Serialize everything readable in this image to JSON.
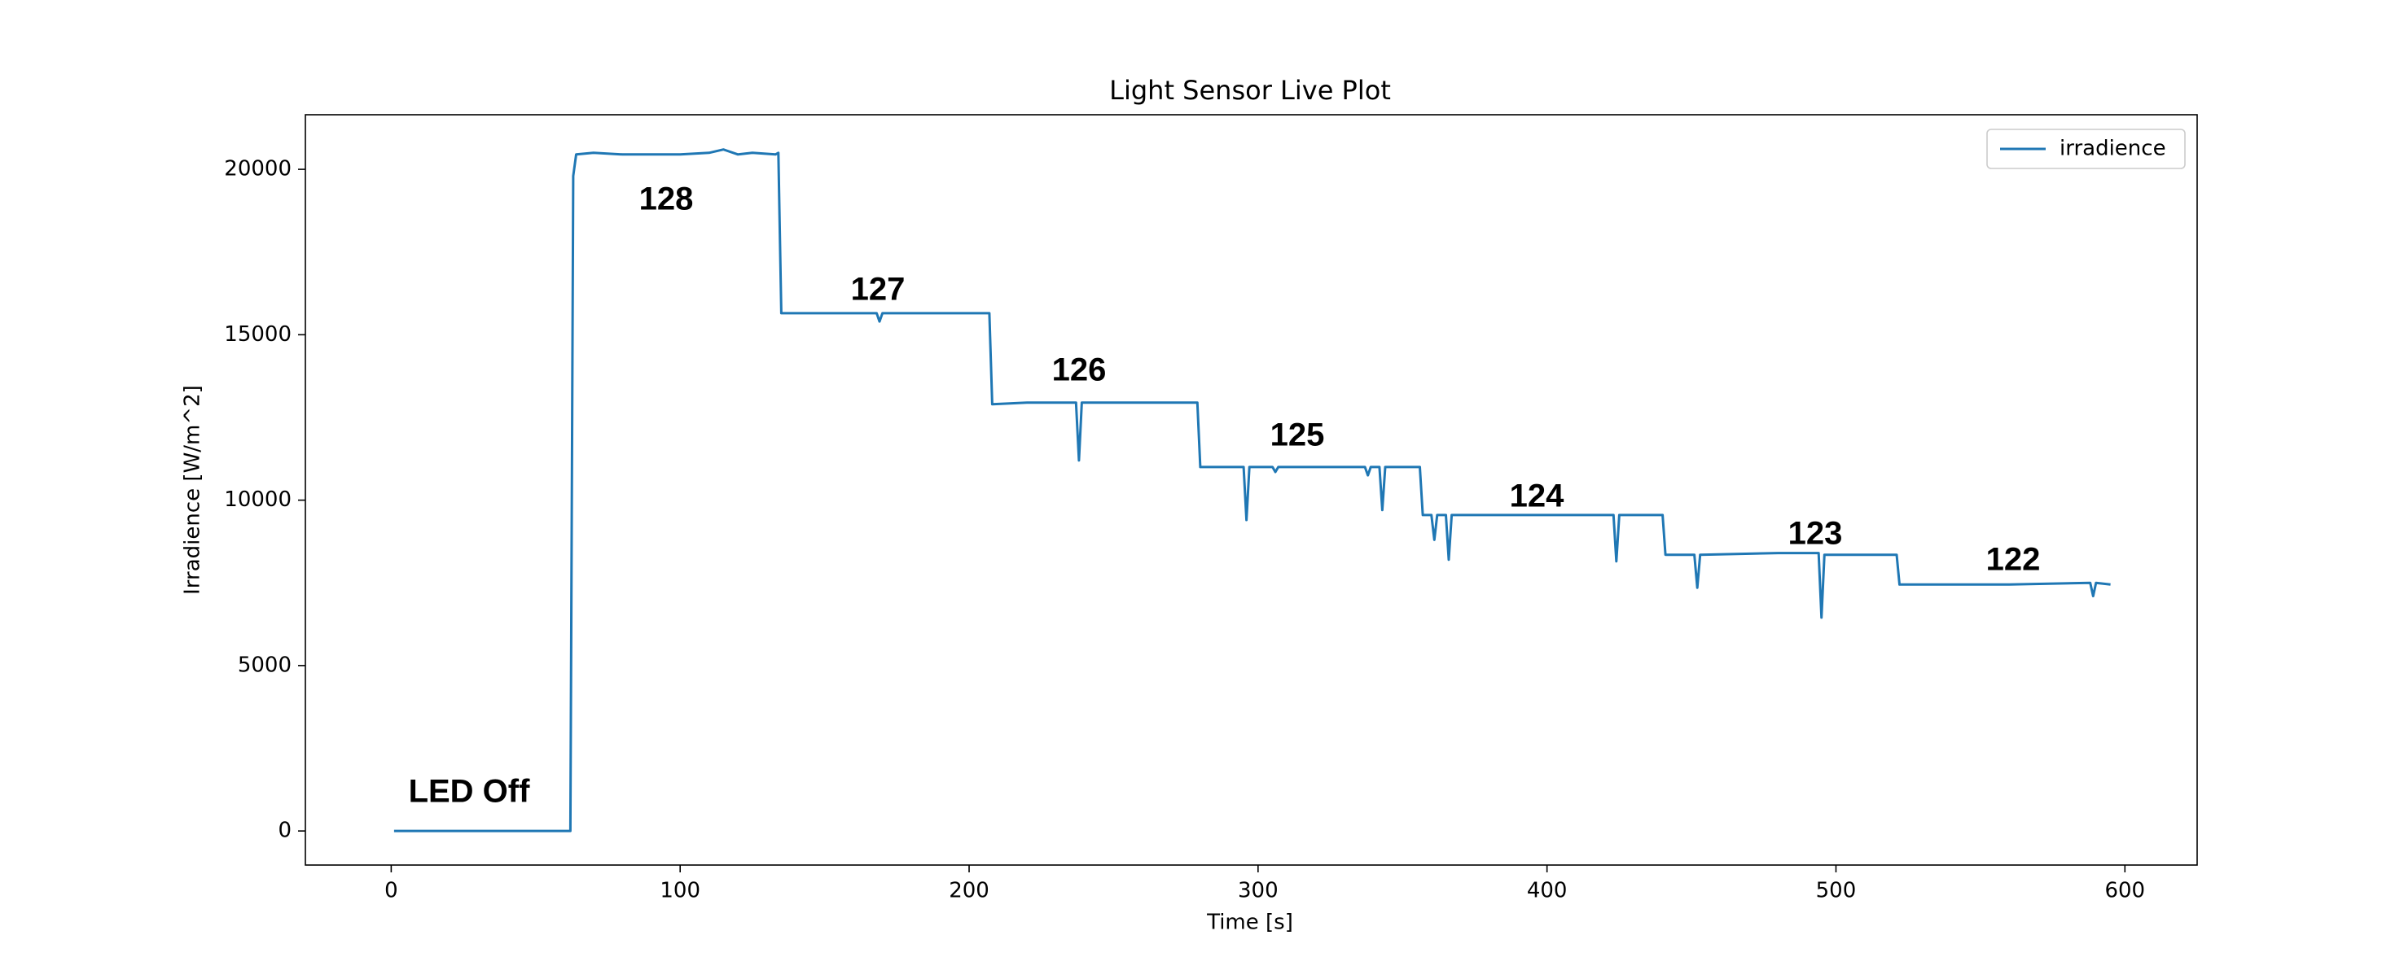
{
  "chart_data": {
    "type": "line",
    "title": "Light Sensor Live Plot",
    "x_label": "Time [s]",
    "y_label": "Irradience [W/m^2]",
    "series": [
      {
        "name": "irradience",
        "color": "#1f77b4",
        "x": [
          1,
          62,
          63,
          64,
          70,
          80,
          90,
          100,
          110,
          115,
          120,
          125,
          133,
          134,
          135,
          150,
          168,
          169,
          170,
          200,
          207,
          208,
          220,
          237,
          238,
          239,
          260,
          279,
          280,
          295,
          296,
          297,
          305,
          306,
          307,
          337,
          338,
          339,
          342,
          343,
          344,
          356,
          357,
          360,
          361,
          362,
          365,
          366,
          367,
          400,
          423,
          424,
          425,
          440,
          441,
          451,
          452,
          453,
          480,
          494,
          495,
          496,
          521,
          522,
          560,
          588,
          589,
          590,
          595
        ],
        "values": [
          0,
          0,
          19800,
          20450,
          20500,
          20450,
          20450,
          20450,
          20500,
          20600,
          20450,
          20500,
          20450,
          20500,
          15650,
          15650,
          15650,
          15400,
          15650,
          15650,
          15650,
          12900,
          12950,
          12950,
          11200,
          12950,
          12950,
          12950,
          11000,
          11000,
          9400,
          11000,
          11000,
          10850,
          11000,
          11000,
          10750,
          11000,
          11000,
          9700,
          11000,
          11000,
          9550,
          9550,
          8800,
          9550,
          9550,
          8200,
          9550,
          9550,
          9550,
          8150,
          9550,
          9550,
          8350,
          8350,
          7350,
          8350,
          8400,
          8400,
          6450,
          8350,
          8350,
          7450,
          7450,
          7500,
          7100,
          7500,
          7450
        ]
      }
    ],
    "annotations": [
      "LED Off",
      "128",
      "127",
      "126",
      "125",
      "124",
      "123",
      "122"
    ],
    "xlim": [
      -29.7,
      625
    ],
    "xticks": [
      0,
      100,
      200,
      300,
      400,
      500,
      600
    ],
    "ylim": [
      -1030,
      21650
    ],
    "yticks": [
      0,
      5000,
      10000,
      15000,
      20000
    ],
    "grid": false,
    "legend": "upper right"
  }
}
